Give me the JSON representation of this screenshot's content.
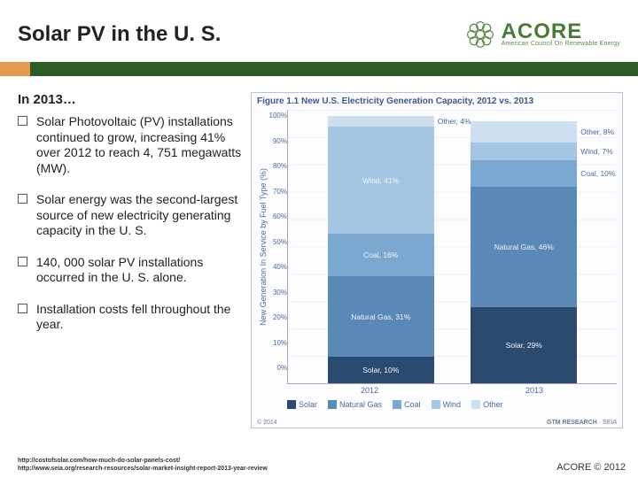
{
  "colors": {
    "solar": "#2b4a6f",
    "natgas": "#5a89b8",
    "coal": "#7ba8d0",
    "wind": "#a5c6e3",
    "other": "#cddff0",
    "accent_orange": "#e39b4f",
    "accent_green": "#2d5a27",
    "logo_green": "#4a7a3a"
  },
  "header": {
    "title": "Solar PV in the U. S.",
    "logo_main": "ACORE",
    "logo_sub": "American Council On Renewable Energy"
  },
  "left": {
    "intro": "In 2013…",
    "bullets": [
      "Solar Photovoltaic (PV) installations continued to grow, increasing 41% over 2012 to reach 4, 751 megawatts (MW).",
      "Solar energy was the second-largest source of new electricity generating capacity in the U. S.",
      "140, 000 solar PV installations occurred in the U. S. alone.",
      "Installation costs fell throughout the year."
    ]
  },
  "chart": {
    "title": "Figure 1.1  New U.S. Electricity Generation Capacity, 2012 vs. 2013",
    "ylabel": "New Generation In Service by Fuel Type (%)",
    "yticks": [
      "100%",
      "90%",
      "80%",
      "70%",
      "60%",
      "50%",
      "40%",
      "30%",
      "20%",
      "10%",
      "0%"
    ],
    "categories": [
      "2012",
      "2013"
    ],
    "series_order": [
      "other",
      "wind",
      "coal",
      "natgas",
      "solar"
    ],
    "bars": {
      "2012": {
        "other": {
          "value": 4,
          "label": "Other, 4%",
          "label_outside": true
        },
        "wind": {
          "value": 41,
          "label": "Wind, 41%",
          "label_outside": false
        },
        "coal": {
          "value": 16,
          "label": "Coal, 16%",
          "label_outside": false
        },
        "natgas": {
          "value": 31,
          "label": "Natural Gas, 31%",
          "label_outside": false
        },
        "solar": {
          "value": 10,
          "label": "Solar, 10%",
          "label_outside": false
        }
      },
      "2013": {
        "other": {
          "value": 8,
          "label": "Other, 8%",
          "label_outside": true
        },
        "wind": {
          "value": 7,
          "label": "Wind, 7%",
          "label_outside": true
        },
        "coal": {
          "value": 10,
          "label": "Coal, 10%",
          "label_outside": true
        },
        "natgas": {
          "value": 46,
          "label": "Natural Gas, 46%",
          "label_outside": false
        },
        "solar": {
          "value": 29,
          "label": "Solar, 29%",
          "label_outside": false
        }
      }
    },
    "legend": [
      {
        "key": "solar",
        "label": "Solar"
      },
      {
        "key": "natgas",
        "label": "Natural Gas"
      },
      {
        "key": "coal",
        "label": "Coal"
      },
      {
        "key": "wind",
        "label": "Wind"
      },
      {
        "key": "other",
        "label": "Other"
      }
    ],
    "footer_left": "© 2014",
    "footer_right_a": "GTM RESEARCH",
    "footer_right_b": "SEIA"
  },
  "footer": {
    "link1": "http://costofsolar.com/how-much-do-solar-panels-cost/",
    "link2": "http://www.seia.org/research-resources/solar-market-insight-report-2013-year-review",
    "copyright": "ACORE © 2012"
  }
}
